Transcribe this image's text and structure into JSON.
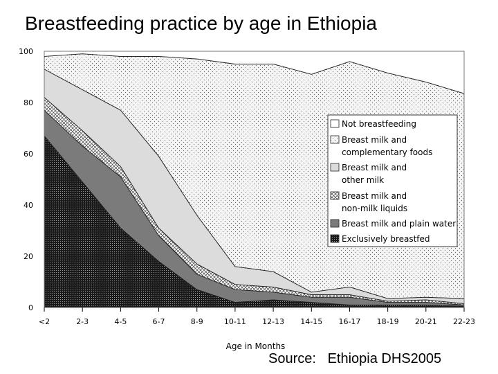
{
  "title": "Breastfeeding practice by age in Ethiopia",
  "source": "Source:   Ethiopia DHS2005",
  "chart_data": {
    "type": "area",
    "stacked": true,
    "xlabel": "Age in Months",
    "ylabel": "",
    "ylim": [
      0,
      100
    ],
    "yticks": [
      0,
      20,
      40,
      60,
      80,
      100
    ],
    "categories": [
      "<2",
      "2-3",
      "4-5",
      "6-7",
      "8-9",
      "10-11",
      "12-13",
      "14-15",
      "16-17",
      "18-19",
      "20-21",
      "22-23"
    ],
    "legend_position": "right",
    "series": [
      {
        "name": "Exclusively breastfed",
        "pattern": "dense-dots",
        "values": [
          67,
          49,
          31,
          18,
          7,
          2,
          3,
          2,
          1,
          1,
          1,
          0.5
        ]
      },
      {
        "name": "Breast milk and plain water",
        "pattern": "solid-gray",
        "values": [
          10,
          14,
          20,
          10,
          6,
          5,
          3,
          2,
          3,
          1,
          1,
          0.5
        ]
      },
      {
        "name": "Breast milk and non-milk liquids",
        "pattern": "crosshatch",
        "values": [
          5,
          6,
          4,
          3,
          4,
          2,
          2,
          1,
          1,
          0.5,
          1,
          0.5
        ]
      },
      {
        "name": "Breast milk and other milk",
        "pattern": "light-gray",
        "values": [
          11,
          16,
          22,
          28,
          19,
          7,
          6,
          1,
          3,
          1,
          1,
          2
        ]
      },
      {
        "name": "Breast milk and\ncomplementary foods",
        "pattern": "light-dots",
        "values": [
          5,
          14,
          21,
          39,
          61,
          79,
          81,
          85,
          88,
          88,
          84,
          80
        ]
      },
      {
        "name": "Not breastfeeding",
        "pattern": "white",
        "values": [
          2,
          1,
          2,
          2,
          3,
          5,
          5,
          9,
          4,
          8.5,
          12,
          16.5
        ]
      }
    ],
    "legend_order": [
      "Not breastfeeding",
      "Breast milk and\ncomplementary foods",
      "Breast milk and\nother milk",
      "Breast milk and\nnon-milk liquids",
      "Breast milk and plain water",
      "Exclusively breastfed"
    ]
  }
}
